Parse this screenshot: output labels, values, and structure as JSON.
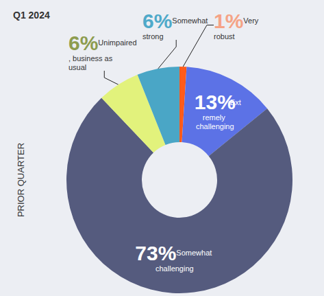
{
  "chart_data": {
    "type": "pie",
    "title": "Q1 2024",
    "subtitle": "PRIOR QUARTER",
    "categories": [
      "Very robust",
      "Extremely challenging",
      "Somewhat challenging",
      "Unimpaired, business as usual",
      "Somewhat strong"
    ],
    "values": [
      1,
      13,
      73,
      6,
      6
    ],
    "value_labels": [
      "1%",
      "13%",
      "73%",
      "6%",
      "6%"
    ],
    "colors": [
      "#ff5b1a",
      "#5c72e6",
      "#555b7e",
      "#e2f27c",
      "#4aa6c6"
    ],
    "data_labels": true
  }
}
